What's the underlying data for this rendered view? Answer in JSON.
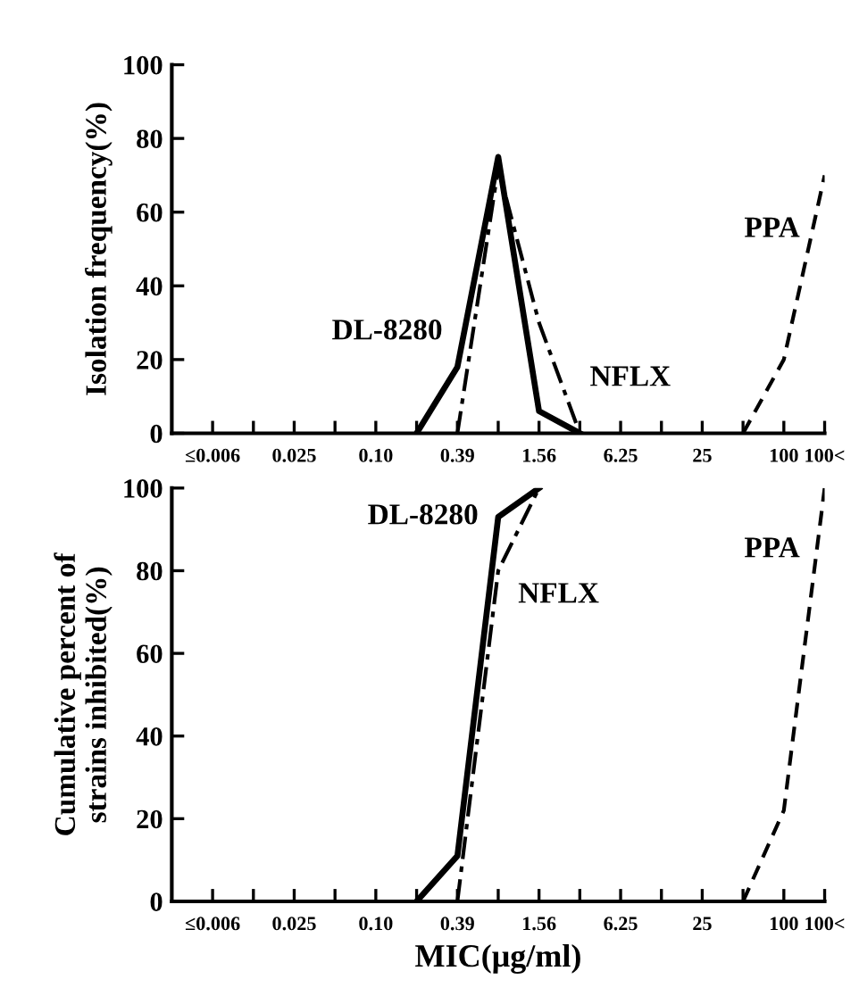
{
  "chart_data": [
    {
      "type": "line",
      "ylabel": "Isolation frequency(%)",
      "categories": [
        "≤0.006",
        null,
        "0.025",
        null,
        "0.10",
        null,
        "0.39",
        null,
        "1.56",
        null,
        "6.25",
        null,
        "25",
        null,
        "100",
        "100<"
      ],
      "ylim": [
        0,
        100
      ],
      "yticks": [
        0,
        20,
        40,
        60,
        80,
        100
      ],
      "grid": false,
      "legend": false,
      "marker": "none",
      "series": [
        {
          "name": "DL-8280",
          "color": "#000000",
          "line_style": "solid",
          "values": [
            null,
            null,
            null,
            null,
            null,
            0,
            18,
            75,
            6,
            0,
            null,
            null,
            null,
            null,
            null,
            null
          ]
        },
        {
          "name": "NFLX",
          "color": "#000000",
          "line_style": "dashdot",
          "values": [
            null,
            null,
            null,
            null,
            null,
            null,
            0,
            72,
            30,
            0,
            null,
            null,
            null,
            null,
            null,
            null
          ]
        },
        {
          "name": "PPA",
          "color": "#000000",
          "line_style": "dashed",
          "values": [
            null,
            null,
            null,
            null,
            null,
            null,
            null,
            null,
            null,
            null,
            null,
            null,
            null,
            0,
            20,
            70
          ]
        }
      ]
    },
    {
      "type": "line",
      "ylabel": "Cumulative percent of\nstrains inhibited(%)",
      "xlabel": "MIC(μg/ml)",
      "categories": [
        "≤0.006",
        null,
        "0.025",
        null,
        "0.10",
        null,
        "0.39",
        null,
        "1.56",
        null,
        "6.25",
        null,
        "25",
        null,
        "100",
        "100<"
      ],
      "ylim": [
        0,
        100
      ],
      "yticks": [
        0,
        20,
        40,
        60,
        80,
        100
      ],
      "grid": false,
      "legend": false,
      "marker": "none",
      "series": [
        {
          "name": "DL-8280",
          "color": "#000000",
          "line_style": "solid",
          "values": [
            null,
            null,
            null,
            null,
            null,
            0,
            11,
            93,
            100,
            null,
            null,
            null,
            null,
            null,
            null,
            null
          ]
        },
        {
          "name": "NFLX",
          "color": "#000000",
          "line_style": "dashdot",
          "values": [
            null,
            null,
            null,
            null,
            null,
            null,
            0,
            80,
            100,
            null,
            null,
            null,
            null,
            null,
            null,
            null
          ]
        },
        {
          "name": "PPA",
          "color": "#000000",
          "line_style": "dashed",
          "values": [
            null,
            null,
            null,
            null,
            null,
            null,
            null,
            null,
            null,
            null,
            null,
            null,
            null,
            0,
            22,
            100
          ]
        }
      ]
    }
  ]
}
